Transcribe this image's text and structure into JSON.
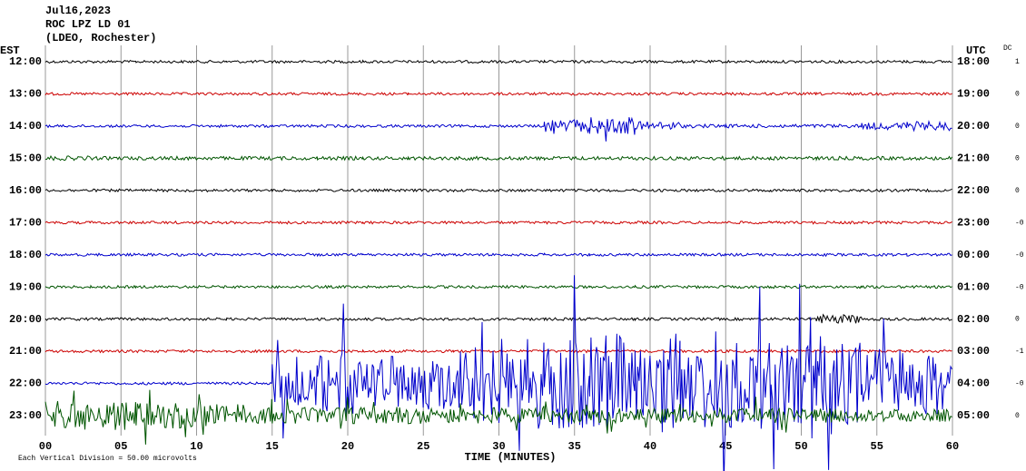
{
  "chart_data": {
    "type": "helicorder",
    "title_lines": [
      "Jul16,2023",
      "ROC LPZ LD 01",
      "(LDEO, Rochester)"
    ],
    "left_axis_label": "EST",
    "right_axis_label": "UTC",
    "dc_label": "DC",
    "x_label": "TIME (MINUTES)",
    "footnote": "Each Vertical Division =   50.00 microvolts",
    "xlim": [
      0,
      60
    ],
    "xticks": [
      {
        "value": 0,
        "label": "00"
      },
      {
        "value": 5,
        "label": "05"
      },
      10,
      15,
      20,
      25,
      30,
      35,
      40,
      45,
      50,
      55,
      60
    ],
    "grid": true,
    "bin_minutes": 3,
    "rows": [
      {
        "est": "12:00",
        "utc": "18:00",
        "dc": "1",
        "color": "#000000",
        "amplitude": [
          1.5,
          1.5,
          1.5,
          1.5,
          1.5,
          1.5,
          1.5,
          1.5,
          1.5,
          1.5,
          1.5,
          1.5,
          1.5,
          1.5,
          1.5,
          1.5,
          1.5,
          1.5,
          1.5,
          1.5
        ]
      },
      {
        "est": "13:00",
        "utc": "19:00",
        "dc": "0",
        "color": "#cc0000",
        "amplitude": [
          1.5,
          1.5,
          1.5,
          1.5,
          1.5,
          1.5,
          1.5,
          1.5,
          1.5,
          1.5,
          1.5,
          1.5,
          1.5,
          1.5,
          1.5,
          1.5,
          1.5,
          1.5,
          1.5,
          1.5
        ]
      },
      {
        "est": "14:00",
        "utc": "20:00",
        "dc": "0",
        "color": "#0000cc",
        "amplitude": [
          1.5,
          1.5,
          1.5,
          1.5,
          1.5,
          1.5,
          1.5,
          1.5,
          1.5,
          1.5,
          1.5,
          7,
          10,
          5,
          2,
          2,
          2,
          2,
          4,
          5
        ]
      },
      {
        "est": "15:00",
        "utc": "21:00",
        "dc": "0",
        "color": "#005500",
        "amplitude": [
          2.5,
          2,
          2,
          2,
          2,
          2,
          2,
          2,
          2,
          2,
          2,
          2,
          2,
          2,
          2,
          2,
          2,
          2,
          2,
          2
        ]
      },
      {
        "est": "16:00",
        "utc": "22:00",
        "dc": "0",
        "color": "#000000",
        "amplitude": [
          1.5,
          1.5,
          1.5,
          1.5,
          1.5,
          1.5,
          1.5,
          1.5,
          1.5,
          1.5,
          1.5,
          1.5,
          1.5,
          1.5,
          1.5,
          1.5,
          1.5,
          1.5,
          1.5,
          1.5
        ]
      },
      {
        "est": "17:00",
        "utc": "23:00",
        "dc": "-0",
        "color": "#cc0000",
        "amplitude": [
          1.5,
          1.5,
          1.5,
          1.5,
          1.5,
          1.5,
          1.5,
          1.5,
          1.5,
          1.5,
          1.5,
          1.5,
          1.5,
          1.5,
          1.5,
          1.5,
          1.5,
          1.5,
          1.5,
          1.5
        ]
      },
      {
        "est": "18:00",
        "utc": "00:00",
        "dc": "-0",
        "color": "#0000cc",
        "amplitude": [
          1.5,
          1.5,
          1.5,
          1.5,
          1.5,
          1.5,
          1.5,
          1.5,
          1.5,
          1.5,
          1.5,
          1.5,
          1.5,
          1.5,
          1.5,
          1.5,
          1.5,
          1.5,
          1.5,
          1.5
        ]
      },
      {
        "est": "19:00",
        "utc": "01:00",
        "dc": "-0",
        "color": "#005500",
        "amplitude": [
          1.5,
          1.5,
          1.5,
          1.5,
          1.5,
          1.5,
          1.5,
          1.5,
          1.5,
          1.5,
          1.5,
          1.5,
          1.5,
          1.5,
          1.5,
          1.5,
          1.5,
          1.5,
          1.5,
          1.5
        ]
      },
      {
        "est": "20:00",
        "utc": "02:00",
        "dc": "0",
        "color": "#000000",
        "amplitude": [
          1.5,
          1.5,
          1.5,
          1.5,
          1.5,
          1.5,
          1.5,
          1.5,
          1.5,
          1.5,
          1.5,
          1.5,
          1.5,
          1.5,
          1.5,
          1.5,
          1.5,
          5,
          1.5,
          1.5
        ]
      },
      {
        "est": "21:00",
        "utc": "03:00",
        "dc": "-1",
        "color": "#cc0000",
        "amplitude": [
          1.5,
          1.5,
          1.5,
          1.5,
          1.5,
          1.5,
          1.5,
          1.5,
          1.5,
          1.5,
          1.5,
          1.5,
          1.5,
          1.5,
          1.5,
          1.5,
          1.5,
          1.5,
          1.5,
          1.5
        ]
      },
      {
        "est": "22:00",
        "utc": "04:00",
        "dc": "-0",
        "color": "#0000cc",
        "amplitude": [
          1.5,
          1.5,
          1.5,
          1.5,
          1.5,
          25,
          35,
          30,
          30,
          45,
          50,
          50,
          55,
          55,
          50,
          50,
          45,
          45,
          40,
          35
        ]
      },
      {
        "est": "23:00",
        "utc": "05:00",
        "dc": "0",
        "color": "#005500",
        "amplitude": [
          16,
          16,
          14,
          12,
          9,
          9,
          9,
          9,
          9,
          9,
          8,
          8,
          8,
          8,
          8,
          8,
          8,
          8,
          7,
          7
        ]
      }
    ]
  }
}
